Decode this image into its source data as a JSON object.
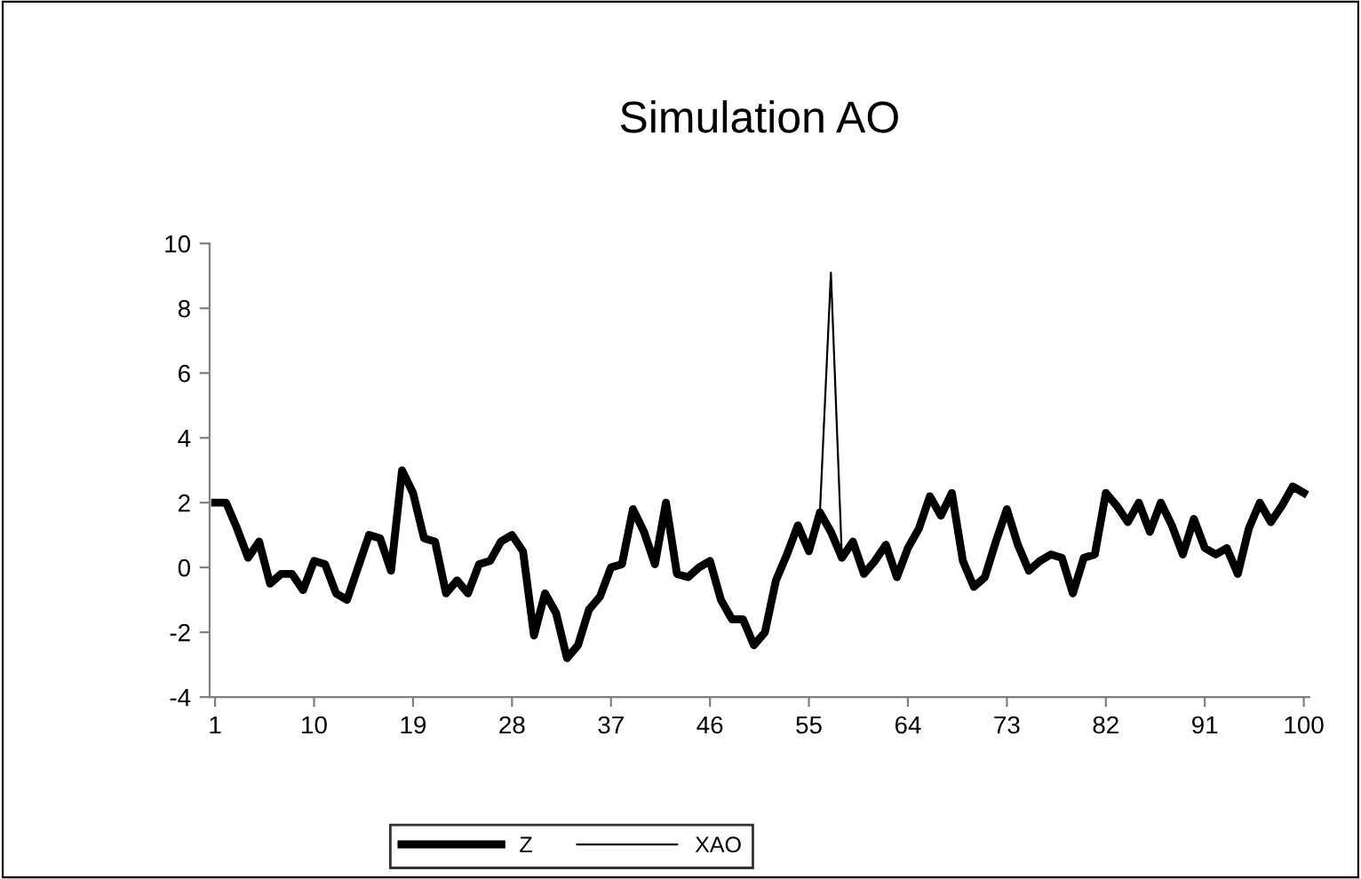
{
  "chart_data": {
    "type": "line",
    "title": "Simulation AO",
    "categories": [
      "1",
      null,
      null,
      null,
      null,
      null,
      null,
      null,
      null,
      "10",
      null,
      null,
      null,
      null,
      null,
      null,
      null,
      null,
      "19",
      null,
      null,
      null,
      null,
      null,
      null,
      null,
      null,
      "28",
      null,
      null,
      null,
      null,
      null,
      null,
      null,
      null,
      "37",
      null,
      null,
      null,
      null,
      null,
      null,
      null,
      null,
      "46",
      null,
      null,
      null,
      null,
      null,
      null,
      null,
      null,
      "55",
      null,
      null,
      null,
      null,
      null,
      null,
      null,
      null,
      "64",
      null,
      null,
      null,
      null,
      null,
      null,
      null,
      null,
      "73",
      null,
      null,
      null,
      null,
      null,
      null,
      null,
      null,
      "82",
      null,
      null,
      null,
      null,
      null,
      null,
      null,
      null,
      "91",
      null,
      null,
      null,
      null,
      null,
      null,
      null,
      null,
      "100"
    ],
    "series": [
      {
        "name": "Z",
        "color": "#000000",
        "values": [
          2.0,
          2.0,
          1.2,
          0.3,
          0.8,
          -0.5,
          -0.2,
          -0.2,
          -0.7,
          0.2,
          0.1,
          -0.8,
          -1.0,
          0.0,
          1.0,
          0.9,
          -0.1,
          3.0,
          2.3,
          0.9,
          0.8,
          -0.8,
          -0.4,
          -0.8,
          0.1,
          0.2,
          0.8,
          1.0,
          0.5,
          -2.1,
          -0.8,
          -1.4,
          -2.8,
          -2.4,
          -1.3,
          -0.9,
          0.0,
          0.1,
          1.8,
          1.1,
          0.1,
          2.0,
          -0.2,
          -0.3,
          0.0,
          0.2,
          -1.0,
          -1.6,
          -1.6,
          -2.4,
          -2.0,
          -0.4,
          0.4,
          1.3,
          0.5,
          1.7,
          1.1,
          0.3,
          0.8,
          -0.2,
          0.2,
          0.7,
          -0.3,
          0.6,
          1.2,
          2.2,
          1.6,
          2.3,
          0.2,
          -0.6,
          -0.3,
          0.8,
          1.8,
          0.7,
          -0.1,
          0.2,
          0.4,
          0.3,
          -0.8,
          0.3,
          0.4,
          2.3,
          1.9,
          1.4,
          2.0,
          1.1,
          2.0,
          1.3,
          0.4,
          1.5,
          0.6,
          0.4,
          0.6,
          -0.2,
          1.2,
          2.0,
          1.4,
          1.9,
          2.5,
          2.3
        ]
      },
      {
        "name": "XAO",
        "color": "#000000",
        "values": [
          2.0,
          2.0,
          1.2,
          0.3,
          0.8,
          -0.5,
          -0.2,
          -0.2,
          -0.7,
          0.2,
          0.1,
          -0.8,
          -1.0,
          0.0,
          1.0,
          0.9,
          -0.1,
          3.0,
          2.3,
          0.9,
          0.8,
          -0.8,
          -0.4,
          -0.8,
          0.1,
          0.2,
          0.8,
          1.0,
          0.5,
          -2.1,
          -0.8,
          -1.4,
          -2.8,
          -2.4,
          -1.3,
          -0.9,
          0.0,
          0.1,
          1.8,
          1.1,
          0.1,
          2.0,
          -0.2,
          -0.3,
          0.0,
          0.2,
          -1.0,
          -1.6,
          -1.6,
          -2.4,
          -2.0,
          -0.4,
          0.4,
          1.3,
          0.5,
          1.7,
          9.1,
          0.3,
          0.8,
          -0.2,
          0.2,
          0.7,
          -0.3,
          0.6,
          1.2,
          2.2,
          1.6,
          2.3,
          0.2,
          -0.6,
          -0.3,
          0.8,
          1.8,
          0.7,
          -0.1,
          0.2,
          0.4,
          0.3,
          -0.8,
          0.3,
          0.4,
          2.3,
          1.9,
          1.4,
          2.0,
          1.1,
          2.0,
          1.3,
          0.4,
          1.5,
          0.6,
          0.4,
          0.6,
          -0.2,
          1.2,
          2.0,
          1.4,
          1.9,
          2.5,
          2.3
        ]
      }
    ],
    "ylim": [
      -4,
      10
    ],
    "yticks": [
      -4,
      -2,
      0,
      2,
      4,
      6,
      8,
      10
    ],
    "grid": false,
    "legend": "bottom",
    "marker": "none",
    "line_style": "solid"
  }
}
